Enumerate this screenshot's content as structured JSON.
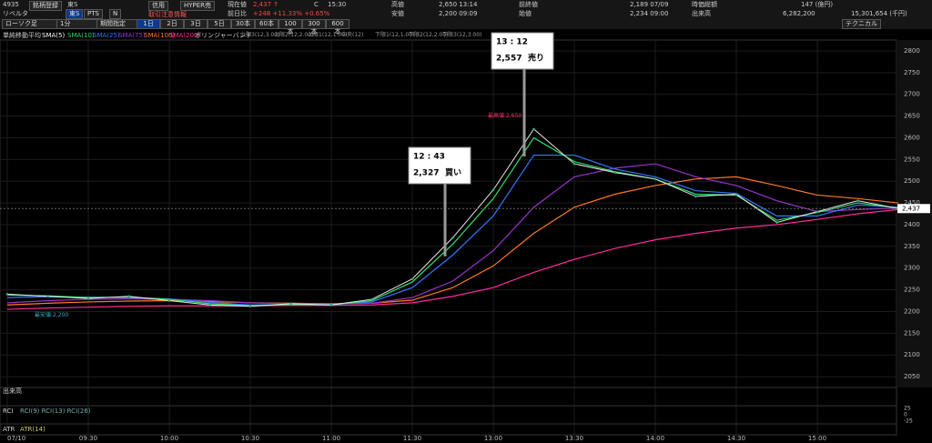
{
  "header": {
    "code": "4935",
    "register": "銘柄登録",
    "market": "東S",
    "pts": "PTS",
    "n": "N",
    "name": "リベルタ",
    "credit": "信用",
    "hyper": "HYPER売",
    "notice": "取引注意情報",
    "current_label": "現在値",
    "current": "2,437 ↑",
    "c": "C",
    "current_time": "15:30",
    "change_label": "前日比",
    "change": "+248 +11.33% +0.65%",
    "high_label": "高値",
    "high": "2,650 13:14",
    "low_label": "安値",
    "low": "2,200 09:09",
    "prev_label": "前終値",
    "prev": "2,189 07/09",
    "open_label": "始値",
    "open": "2,234 09:00",
    "cap_label": "時価総額",
    "cap": "147 (億円)",
    "vol_label": "出来高",
    "vol": "6,282,200",
    "amount": "15,301,654 (千円)"
  },
  "toolbar": {
    "chart_kind": "ローソク足",
    "interval": "1分",
    "period": "期間指定",
    "ranges": [
      "1日",
      "2日",
      "3日",
      "5日",
      "30本",
      "60本",
      "100本",
      "300本",
      "600本"
    ],
    "technical": "テクニカル"
  },
  "legend": {
    "title": "単純移動平均",
    "sma5": "SMA(5)",
    "bollinger": "ボリンジャーバンド",
    "bands": [
      "上限3(12,3.00)",
      "上限2(12,2.00)",
      "上限1(12,1.00)",
      "中央(12)",
      "下限1(12,1.00)",
      "下限2(12,2.00)",
      "下限3(12,3.00)"
    ]
  },
  "chart_data": {
    "type": "line",
    "x": [
      "09:00",
      "09:15",
      "09:30",
      "09:45",
      "10:00",
      "10:15",
      "10:30",
      "10:45",
      "11:00",
      "11:15",
      "11:30",
      "12:45",
      "13:00",
      "13:15",
      "13:30",
      "13:45",
      "14:00",
      "14:15",
      "14:30",
      "14:45",
      "15:00",
      "15:15",
      "15:30"
    ],
    "close": {
      "color": "#e8e8e8",
      "values": [
        2240,
        2235,
        2230,
        2235,
        2225,
        2215,
        2212,
        2218,
        2215,
        2228,
        2275,
        2370,
        2480,
        2620,
        2540,
        2520,
        2505,
        2465,
        2470,
        2405,
        2430,
        2455,
        2437
      ]
    },
    "series": [
      {
        "name": "SMA(10)",
        "color": "#33dd66",
        "values": [
          2238,
          2236,
          2232,
          2233,
          2228,
          2218,
          2213,
          2216,
          2215,
          2225,
          2268,
          2355,
          2460,
          2600,
          2545,
          2522,
          2505,
          2470,
          2468,
          2410,
          2428,
          2450,
          2438
        ]
      },
      {
        "name": "SMA(25)",
        "color": "#3377ff",
        "values": [
          2232,
          2234,
          2233,
          2232,
          2229,
          2221,
          2215,
          2216,
          2216,
          2222,
          2255,
          2330,
          2420,
          2560,
          2560,
          2528,
          2510,
          2478,
          2472,
          2420,
          2420,
          2445,
          2440
        ]
      },
      {
        "name": "SMA(75)",
        "color": "#9933cc",
        "values": [
          2220,
          2225,
          2228,
          2229,
          2228,
          2225,
          2220,
          2218,
          2217,
          2219,
          2232,
          2270,
          2340,
          2440,
          2510,
          2530,
          2540,
          2510,
          2490,
          2455,
          2430,
          2435,
          2438
        ]
      },
      {
        "name": "SMA(100)",
        "color": "#ff7722",
        "values": [
          2215,
          2219,
          2222,
          2224,
          2225,
          2223,
          2220,
          2219,
          2218,
          2219,
          2226,
          2255,
          2305,
          2380,
          2440,
          2470,
          2490,
          2505,
          2510,
          2490,
          2468,
          2460,
          2450
        ]
      },
      {
        "name": "SMA(200)",
        "color": "#ff2a9a",
        "values": [
          2205,
          2208,
          2210,
          2212,
          2213,
          2213,
          2213,
          2214,
          2214,
          2215,
          2220,
          2235,
          2255,
          2290,
          2320,
          2345,
          2365,
          2380,
          2392,
          2400,
          2412,
          2425,
          2435
        ]
      }
    ],
    "ylim": [
      2025,
      2825
    ],
    "yticks": [
      2050,
      2100,
      2150,
      2200,
      2250,
      2300,
      2350,
      2400,
      2450,
      2500,
      2550,
      2600,
      2650,
      2700,
      2750,
      2800
    ],
    "xticks": [
      {
        "value": 0,
        "label": "07/10"
      },
      {
        "value": 2,
        "label": "09:30"
      },
      {
        "value": 4,
        "label": "10:00"
      },
      {
        "value": 6,
        "label": "10:30"
      },
      {
        "value": 8,
        "label": "11:00"
      },
      {
        "value": 10,
        "label": "11:30"
      },
      {
        "value": 12,
        "label": "13:00"
      },
      {
        "value": 14,
        "label": "13:30"
      },
      {
        "value": 16,
        "label": "14:00"
      },
      {
        "value": 18,
        "label": "14:30"
      },
      {
        "value": 20,
        "label": "15:00"
      }
    ],
    "last_label": "2,437",
    "last": 2437,
    "high_note": "最高値:2,650",
    "high": 2650,
    "low_note": "最安値:2,200",
    "low": 2200,
    "annotations": [
      {
        "time": "12 : 43",
        "price_label": "2,327",
        "price": 2327,
        "side": "買い"
      },
      {
        "time": "13 : 12",
        "price_label": "2,557",
        "price": 2557,
        "side": "売り"
      }
    ]
  },
  "panels": {
    "volume": "出来高",
    "rci": "RCI",
    "rci_items": "RCI(9) RCI(13) RCI(26)",
    "rci_ticks": [
      "25",
      "0",
      "-25"
    ],
    "atr": "ATR",
    "atr_item": "ATR(14)"
  }
}
